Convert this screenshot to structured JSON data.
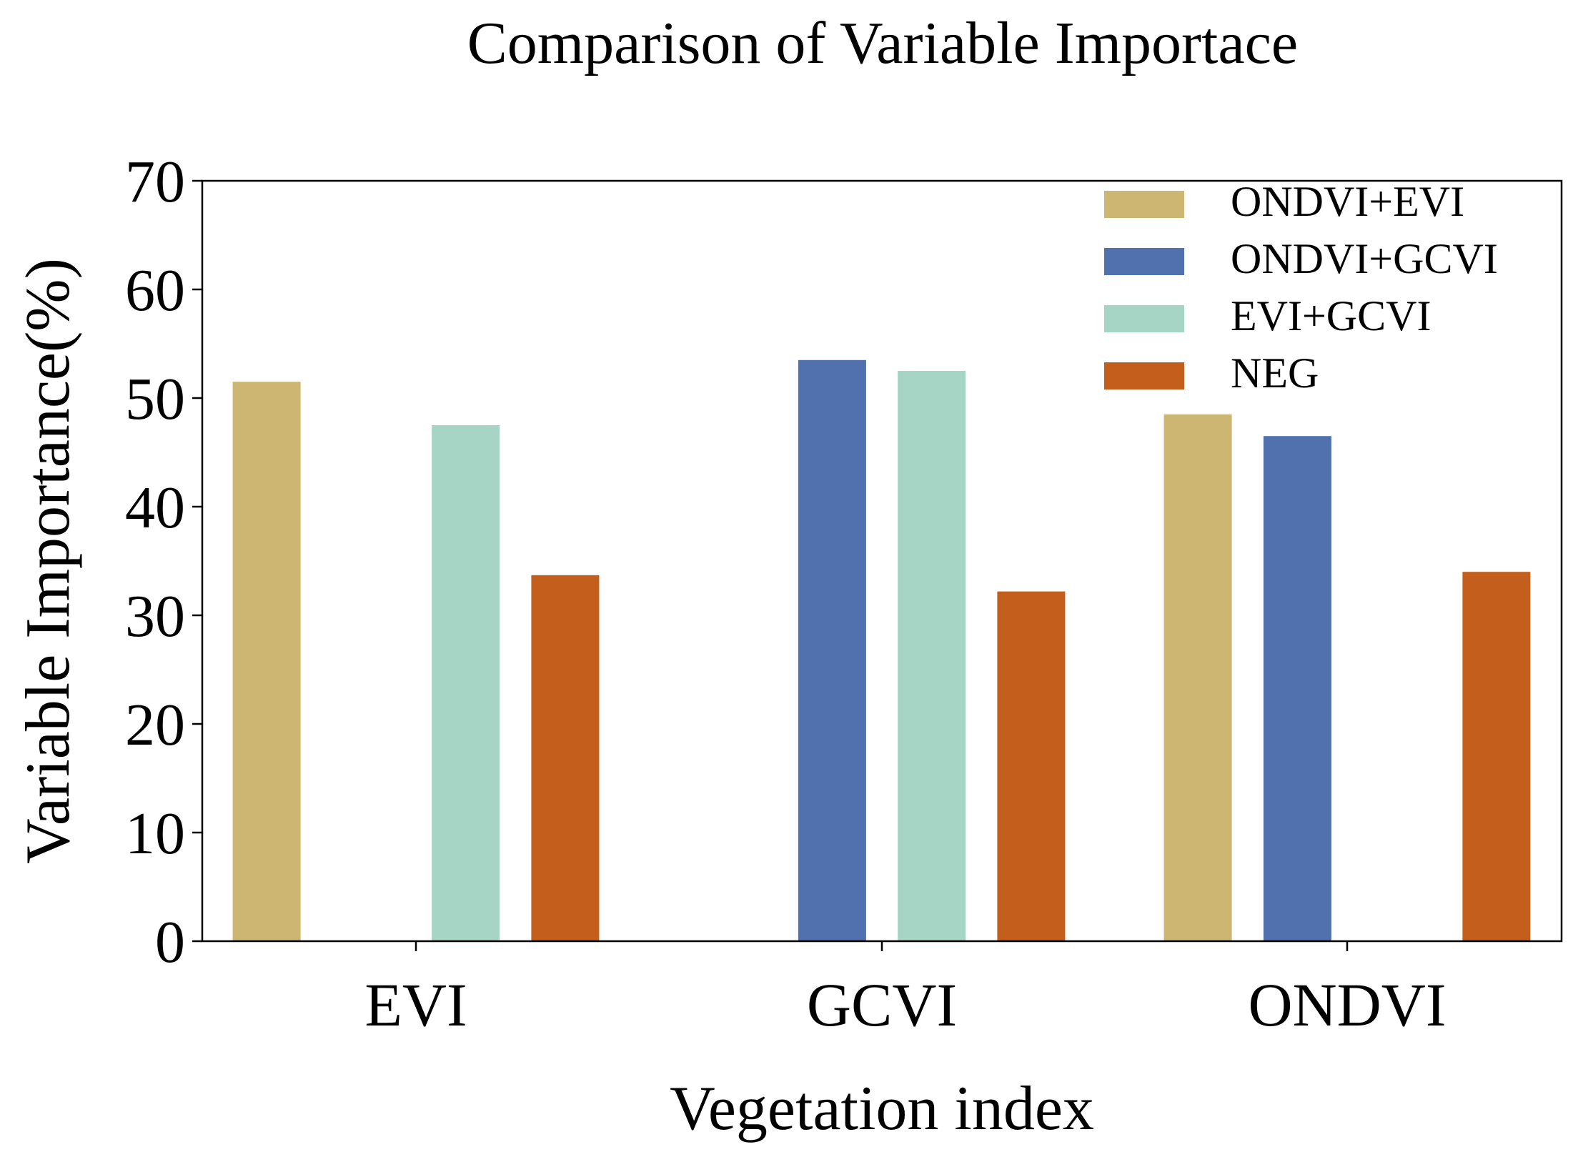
{
  "chart_data": {
    "type": "bar",
    "title": "Comparison of Variable Importace",
    "xlabel": "Vegetation index",
    "ylabel": "Variable Importance(%)",
    "categories": [
      "EVI",
      "GCVI",
      "ONDVI"
    ],
    "ylim": [
      0,
      70
    ],
    "yticks": [
      0,
      10,
      20,
      30,
      40,
      50,
      60,
      70
    ],
    "grid": false,
    "legend_position": "top-right",
    "series": [
      {
        "name": "ONDVI+EVI",
        "color": "#CDB672",
        "values": [
          51.5,
          null,
          48.5
        ]
      },
      {
        "name": "ONDVI+GCVI",
        "color": "#5070AE",
        "values": [
          null,
          53.5,
          46.5
        ]
      },
      {
        "name": "EVI+GCVI",
        "color": "#A6D4C5",
        "values": [
          47.5,
          52.5,
          null
        ]
      },
      {
        "name": "NEG",
        "color": "#C45E1C",
        "values": [
          33.7,
          32.2,
          34.0
        ]
      }
    ]
  }
}
